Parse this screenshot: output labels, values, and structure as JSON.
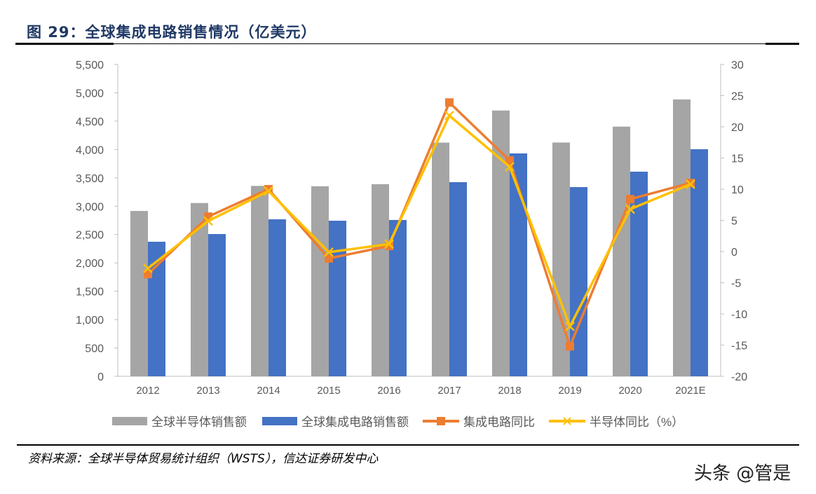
{
  "title": "图 29：全球集成电路销售情况（亿美元）",
  "source": "资料来源：全球半导体贸易统计组织（WSTS），信达证券研发中心",
  "watermark": "头条 @管是",
  "chart_data": {
    "type": "bar+line",
    "categories": [
      "2012",
      "2013",
      "2014",
      "2015",
      "2016",
      "2017",
      "2018",
      "2019",
      "2020",
      "2021E"
    ],
    "y_left": {
      "range": [
        0,
        5500
      ],
      "ticks": [
        "0",
        "500",
        "1,000",
        "1,500",
        "2,000",
        "2,500",
        "3,000",
        "3,500",
        "4,000",
        "4,500",
        "5,000",
        "5,500"
      ]
    },
    "y_right": {
      "range": [
        -20,
        30
      ],
      "ticks": [
        "-20",
        "-15",
        "-10",
        "-5",
        "0",
        "5",
        "10",
        "15",
        "20",
        "25",
        "30"
      ]
    },
    "legend_position": "bottom",
    "grid": false,
    "series": [
      {
        "name": "全球半导体销售额",
        "type": "bar",
        "axis": "left",
        "color": "#a5a5a5",
        "values": [
          2916,
          3056,
          3358,
          3352,
          3389,
          4122,
          4688,
          4123,
          4404,
          4883
        ]
      },
      {
        "name": "全球集成电路销售额",
        "type": "bar",
        "axis": "left",
        "color": "#4472c4",
        "values": [
          2373,
          2509,
          2769,
          2744,
          2757,
          3424,
          3931,
          3337,
          3609,
          4005
        ]
      },
      {
        "name": "集成电路同比",
        "type": "line",
        "axis": "right",
        "color": "#ed7d31",
        "marker": "square",
        "values": [
          -3.6,
          5.6,
          10.0,
          -1.1,
          0.9,
          23.9,
          14.6,
          -15.2,
          8.4,
          11.0
        ]
      },
      {
        "name": "半导体同比（%）",
        "type": "line",
        "axis": "right",
        "color": "#ffc000",
        "marker": "x",
        "values": [
          -2.7,
          4.9,
          9.7,
          -0.1,
          1.2,
          21.8,
          13.6,
          -12.0,
          6.8,
          10.8
        ]
      }
    ]
  }
}
